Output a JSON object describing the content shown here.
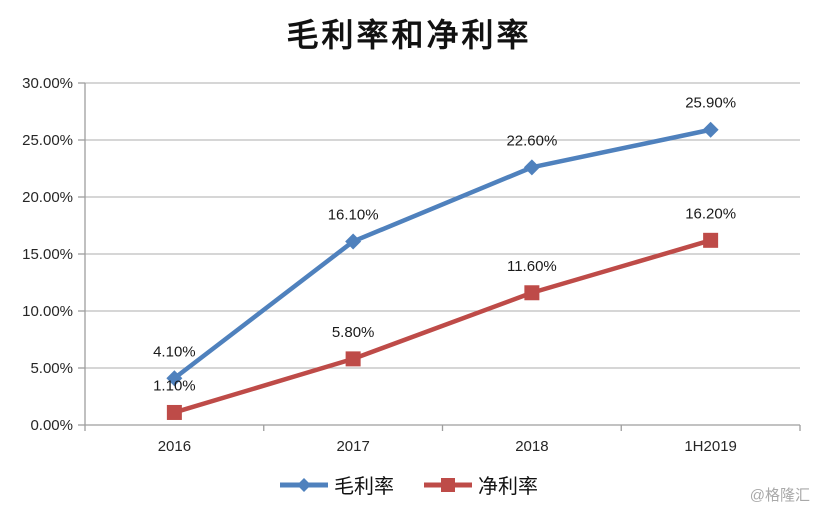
{
  "chart_data": {
    "type": "line",
    "title": "毛利率和净利率",
    "categories": [
      "2016",
      "2017",
      "2018",
      "1H2019"
    ],
    "series": [
      {
        "key": "gross-margin",
        "name": "毛利率",
        "values": [
          4.1,
          16.1,
          22.6,
          25.9
        ],
        "color": "#4F81BD",
        "marker": "diamond"
      },
      {
        "key": "net-margin",
        "name": "净利率",
        "values": [
          1.1,
          5.8,
          11.6,
          16.2
        ],
        "color": "#BE4B48",
        "marker": "square"
      }
    ],
    "y_axis": {
      "min": 0,
      "max": 30,
      "step": 5,
      "tick_labels": [
        "0.00%",
        "5.00%",
        "10.00%",
        "15.00%",
        "20.00%",
        "25.00%",
        "30.00%"
      ]
    },
    "data_label_format": "0.00%",
    "grid": true,
    "legend_position": "bottom",
    "colors": {
      "gridline": "#bdbdbd",
      "axis": "#9e9e9e",
      "tick_text": "#262626",
      "label_text": "#1a1a1a"
    }
  },
  "watermark": "@格隆汇"
}
